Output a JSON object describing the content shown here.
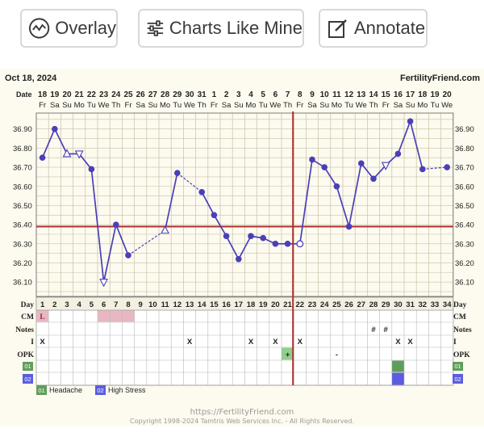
{
  "toolbar": {
    "overlay_label": "Overlay",
    "charts_like_mine_label": "Charts Like Mine",
    "annotate_label": "Annotate"
  },
  "header": {
    "date": "Oct 18, 2024",
    "site": "FertilityFriend.com",
    "date_row_label": "Date",
    "day_row_label": "Day"
  },
  "chart_data": {
    "type": "line",
    "x_dates": [
      "18",
      "19",
      "20",
      "21",
      "22",
      "23",
      "24",
      "25",
      "26",
      "27",
      "28",
      "29",
      "30",
      "31",
      "1",
      "2",
      "3",
      "4",
      "5",
      "6",
      "7",
      "8",
      "9",
      "10",
      "11",
      "12",
      "13",
      "14",
      "15",
      "16",
      "17",
      "18",
      "19",
      "20"
    ],
    "x_weekdays": [
      "Fr",
      "Sa",
      "Su",
      "Mo",
      "Tu",
      "We",
      "Th",
      "Fr",
      "Sa",
      "Su",
      "Mo",
      "Tu",
      "We",
      "Th",
      "Fr",
      "Sa",
      "Su",
      "Mo",
      "Tu",
      "We",
      "Th",
      "Fr",
      "Sa",
      "Su",
      "Mo",
      "Tu",
      "We",
      "Th",
      "Fr",
      "Sa",
      "Su",
      "Mo",
      "Tu",
      "We"
    ],
    "cycle_days": [
      "1",
      "2",
      "3",
      "4",
      "5",
      "6",
      "7",
      "8",
      "9",
      "10",
      "11",
      "12",
      "13",
      "14",
      "15",
      "16",
      "17",
      "18",
      "19",
      "20",
      "21",
      "22",
      "23",
      "24",
      "25",
      "26",
      "27",
      "28",
      "29",
      "30",
      "31",
      "32",
      "33",
      "34"
    ],
    "y_ticks": [
      "36.90",
      "36.80",
      "36.70",
      "36.60",
      "36.50",
      "36.40",
      "36.30",
      "36.20",
      "36.10"
    ],
    "ylim": [
      36.025,
      36.983
    ],
    "series": [
      {
        "temps": [
          36.75,
          36.9,
          36.77,
          36.77,
          36.69,
          36.1,
          36.4,
          36.24,
          null,
          null,
          36.37,
          36.67,
          null,
          36.57,
          36.45,
          36.34,
          36.22,
          36.34,
          36.33,
          36.3,
          36.3,
          36.3,
          36.74,
          36.7,
          36.6,
          36.39,
          36.72,
          36.64,
          36.71,
          36.77,
          36.94,
          36.69,
          null,
          36.7
        ],
        "markers": [
          "dot",
          "dot",
          "tri-up",
          "tri-down",
          "dot",
          "tri-down",
          "dot",
          "dot",
          "",
          "",
          "tri-up",
          "dot",
          "",
          "dot",
          "dot",
          "dot",
          "dot",
          "dot",
          "dot",
          "dot",
          "dot",
          "circle",
          "dot",
          "dot",
          "dot",
          "dot",
          "dot",
          "dot",
          "tri-down",
          "dot",
          "dot",
          "dot",
          "",
          "dot"
        ],
        "segments": [
          "solid",
          "solid",
          "solid",
          "solid",
          "solid",
          "solid",
          "solid",
          "dashed",
          "dashed",
          "dashed",
          "solid",
          "dashed",
          "dashed",
          "solid",
          "solid",
          "solid",
          "solid",
          "solid",
          "solid",
          "solid",
          "solid",
          "solid",
          "solid",
          "solid",
          "solid",
          "solid",
          "solid",
          "solid",
          "solid",
          "solid",
          "solid",
          "dashed",
          "dashed"
        ]
      }
    ],
    "coverline": 36.39,
    "ovulation_day_index": 21,
    "colors": {
      "line": "#4a3fb8",
      "coverline": "#b03030",
      "ovulation": "#b03030",
      "grid": "#c8c2a8",
      "cm_pink": "#e9b7c1",
      "opk_green": "#8fd08a",
      "symptom_green": "#5f9e5a",
      "symptom_blue": "#5c5ce0"
    }
  },
  "rows": {
    "cm": {
      "label": "CM",
      "values": {
        "0": "L"
      },
      "shaded": [
        0,
        5,
        6,
        7
      ]
    },
    "notes": {
      "label": "Notes",
      "values": {
        "27": "#",
        "28": "#"
      }
    },
    "intercourse": {
      "label": "I",
      "values": {
        "0": "X",
        "12": "X",
        "17": "X",
        "19": "X",
        "21": "X",
        "29": "X",
        "30": "X"
      }
    },
    "opk": {
      "label": "OPK",
      "values": {
        "20": "+",
        "24": "-"
      },
      "shaded": [
        20
      ]
    },
    "symptom1": {
      "code": "01",
      "shaded": [
        29
      ]
    },
    "symptom2": {
      "code": "02",
      "shaded": [
        29
      ]
    }
  },
  "legend": [
    {
      "code": "01",
      "label": "Headache",
      "color": "#5f9e5a"
    },
    {
      "code": "02",
      "label": "High Stress",
      "color": "#5c5ce0"
    }
  ],
  "footer": {
    "url": "https://FertilityFriend.com",
    "copyright": "Copyright 1998-2024 Tamtris Web Services Inc. - All Rights Reserved."
  }
}
